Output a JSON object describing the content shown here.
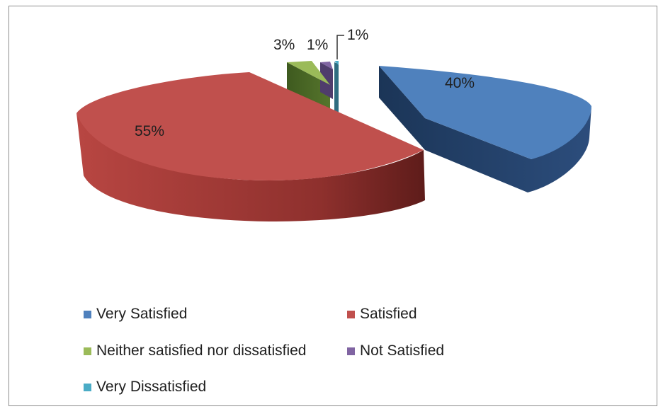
{
  "chart_data": {
    "type": "pie",
    "style": "3d-exploded",
    "slices": [
      {
        "name": "Very Satisfied",
        "value": 40,
        "label": "40%",
        "color": "#4f81bd"
      },
      {
        "name": "Satisfied",
        "value": 55,
        "label": "55%",
        "color": "#c0504d"
      },
      {
        "name": "Neither satisfied nor dissatisfied",
        "value": 3,
        "label": "3%",
        "color": "#9bbb59"
      },
      {
        "name": "Not Satisfied",
        "value": 1,
        "label": "1%",
        "color": "#8064a2"
      },
      {
        "name": "Very Dissatisfied",
        "value": 1,
        "label": "1%",
        "color": "#4bacc6"
      }
    ],
    "legend_position": "bottom"
  }
}
